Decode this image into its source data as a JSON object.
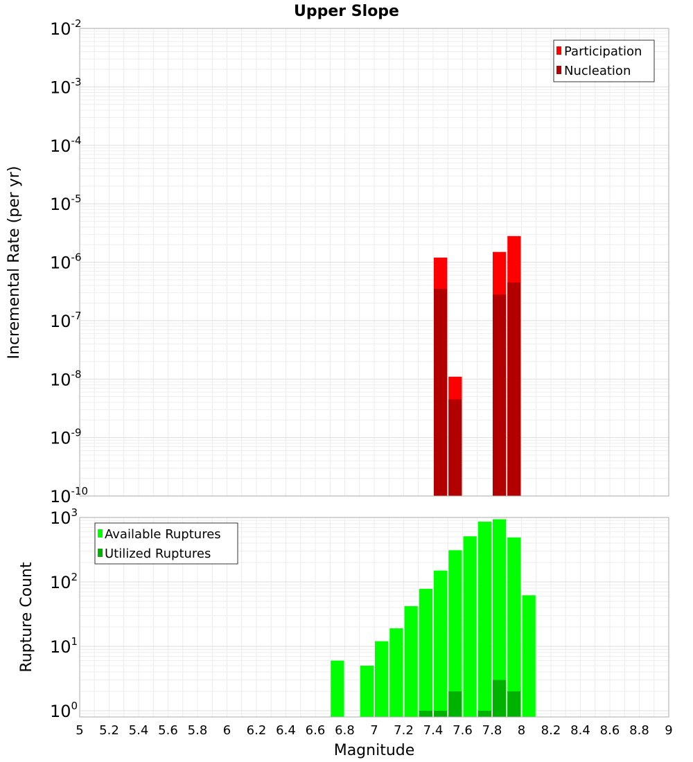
{
  "chart_data": {
    "title": "Upper Slope",
    "xlabel": "Magnitude",
    "xlim": [
      5,
      9
    ],
    "x_ticks": [
      "5",
      "5.2",
      "5.4",
      "5.6",
      "5.8",
      "6",
      "6.2",
      "6.4",
      "6.6",
      "6.8",
      "7",
      "7.2",
      "7.4",
      "7.6",
      "7.8",
      "8",
      "8.2",
      "8.4",
      "8.6",
      "8.8",
      "9"
    ],
    "bin_width": 0.1,
    "grid": true,
    "panels": [
      {
        "type": "bar",
        "scale": "log",
        "ylabel": "Incremental Rate (per yr)",
        "ylim": [
          1e-10,
          0.01
        ],
        "y_ticks": [
          {
            "base": "10",
            "exp": "-2"
          },
          {
            "base": "10",
            "exp": "-3"
          },
          {
            "base": "10",
            "exp": "-4"
          },
          {
            "base": "10",
            "exp": "-5"
          },
          {
            "base": "10",
            "exp": "-6"
          },
          {
            "base": "10",
            "exp": "-7"
          },
          {
            "base": "10",
            "exp": "-8"
          },
          {
            "base": "10",
            "exp": "-9"
          },
          {
            "base": "10",
            "exp": "-10"
          }
        ],
        "legend": "top-right",
        "series": [
          {
            "name": "Participation",
            "color": "#ff0000",
            "x": [
              7.45,
              7.55,
              7.85,
              7.95
            ],
            "values": [
              1.2e-06,
              1.1e-08,
              1.5e-06,
              2.8e-06
            ]
          },
          {
            "name": "Nucleation",
            "color": "#b20000",
            "x": [
              7.45,
              7.55,
              7.85,
              7.95
            ],
            "values": [
              3.5e-07,
              4.5e-09,
              2.8e-07,
              4.5e-07
            ]
          }
        ]
      },
      {
        "type": "bar",
        "scale": "log",
        "ylabel": "Rupture Count",
        "ylim": [
          0.8,
          1000
        ],
        "y_ticks": [
          {
            "base": "10",
            "exp": "3"
          },
          {
            "base": "10",
            "exp": "2"
          },
          {
            "base": "10",
            "exp": "1"
          },
          {
            "base": "10",
            "exp": "0"
          }
        ],
        "legend": "top-left",
        "series": [
          {
            "name": "Available Ruptures",
            "color": "#00ff00",
            "x": [
              6.75,
              6.95,
              7.05,
              7.15,
              7.25,
              7.35,
              7.45,
              7.55,
              7.65,
              7.75,
              7.85,
              7.95,
              8.05
            ],
            "values": [
              6,
              5,
              12,
              19,
              42,
              78,
              150,
              310,
              510,
              860,
              940,
              490,
              62
            ]
          },
          {
            "name": "Utilized Ruptures",
            "color": "#00b200",
            "x": [
              7.35,
              7.45,
              7.55,
              7.75,
              7.85,
              7.95
            ],
            "values": [
              1,
              1,
              2,
              1,
              3,
              2
            ]
          }
        ]
      }
    ]
  }
}
